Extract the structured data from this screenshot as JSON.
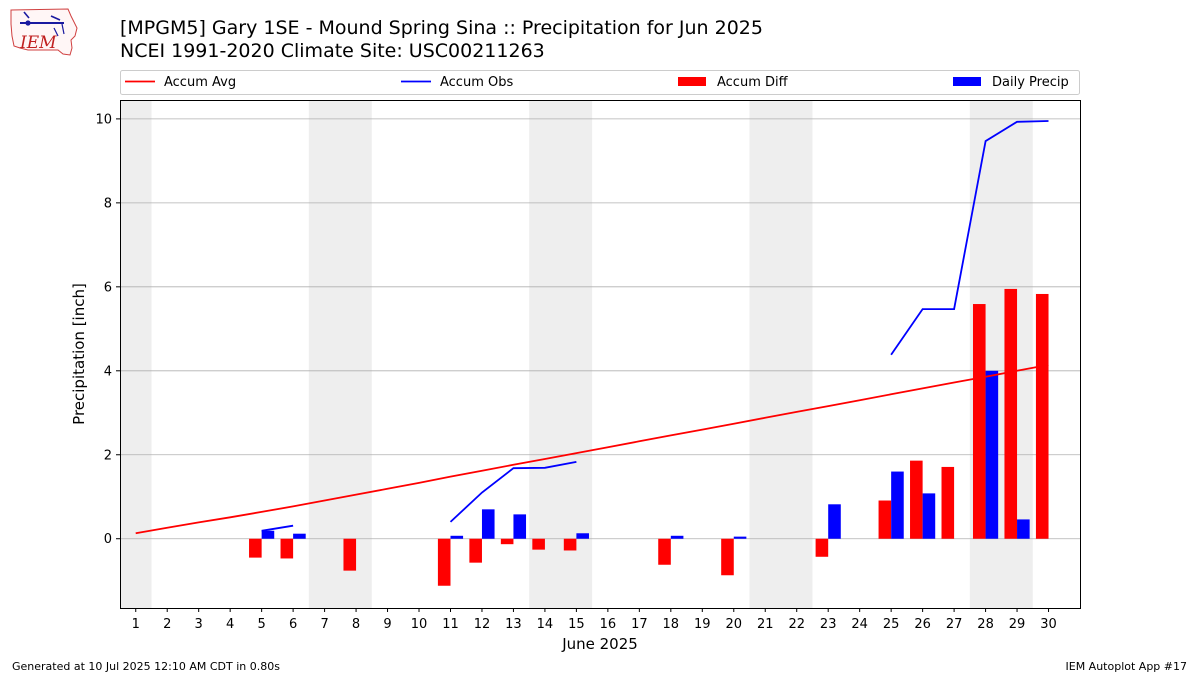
{
  "header": {
    "title_line1": "[MPGM5] Gary 1SE - Mound Spring Sina :: Precipitation for Jun 2025",
    "title_line2": "NCEI 1991-2020 Climate Site: USC00211263",
    "logo_text": "IEM"
  },
  "footer": {
    "left": "Generated at 10 Jul 2025 12:10 AM CDT in 0.80s",
    "right": "IEM Autoplot App #17"
  },
  "chart_data": {
    "type": "bar",
    "xlabel": "June 2025",
    "ylabel": "Precipitation [inch]",
    "xlim": [
      0.5,
      31.0
    ],
    "ylim": [
      -1.65,
      10.45
    ],
    "yticks": [
      0,
      2,
      4,
      6,
      8,
      10
    ],
    "x": [
      1,
      2,
      3,
      4,
      5,
      6,
      7,
      8,
      9,
      10,
      11,
      12,
      13,
      14,
      15,
      16,
      17,
      18,
      19,
      20,
      21,
      22,
      23,
      24,
      25,
      26,
      27,
      28,
      29,
      30
    ],
    "weekend_shading": [
      [
        0.5,
        1.5
      ],
      [
        6.5,
        8.5
      ],
      [
        13.5,
        15.5
      ],
      [
        20.5,
        22.5
      ],
      [
        27.5,
        29.5
      ]
    ],
    "grid": "horizontal",
    "legend": {
      "placement": "top",
      "entries": [
        {
          "label": "Accum Avg",
          "kind": "line",
          "color": "#ff0000"
        },
        {
          "label": "Accum Obs",
          "kind": "line",
          "color": "#0000ff"
        },
        {
          "label": "Accum Diff",
          "kind": "bar",
          "color": "#ff0000"
        },
        {
          "label": "Daily Precip",
          "kind": "bar",
          "color": "#0000ff"
        }
      ]
    },
    "series": [
      {
        "name": "Accum Avg",
        "kind": "line",
        "color": "#ff0000",
        "values": [
          0.13,
          0.26,
          0.39,
          0.51,
          0.64,
          0.77,
          0.91,
          1.05,
          1.19,
          1.33,
          1.48,
          1.62,
          1.76,
          1.9,
          2.04,
          2.18,
          2.32,
          2.46,
          2.6,
          2.74,
          2.88,
          3.02,
          3.16,
          3.3,
          3.44,
          3.58,
          3.72,
          3.86,
          4.0,
          4.14
        ]
      },
      {
        "name": "Accum Obs",
        "kind": "line",
        "color": "#0000ff",
        "values": [
          null,
          null,
          null,
          null,
          0.19,
          0.31,
          null,
          null,
          null,
          null,
          0.4,
          1.1,
          1.68,
          1.69,
          1.83,
          null,
          null,
          null,
          null,
          null,
          null,
          null,
          null,
          null,
          4.38,
          5.47,
          5.47,
          9.47,
          9.93,
          9.95
        ]
      },
      {
        "name": "Accum Diff",
        "kind": "bar",
        "color": "#ff0000",
        "values": [
          null,
          null,
          null,
          null,
          -0.45,
          -0.47,
          null,
          -0.76,
          null,
          null,
          -1.12,
          -0.57,
          -0.13,
          -0.26,
          -0.28,
          null,
          null,
          -0.62,
          null,
          -0.87,
          null,
          null,
          -0.43,
          null,
          0.91,
          1.86,
          1.71,
          5.59,
          5.95,
          5.83
        ]
      },
      {
        "name": "Daily Precip",
        "kind": "bar",
        "color": "#0000ff",
        "values": [
          null,
          null,
          null,
          null,
          0.19,
          0.12,
          null,
          null,
          null,
          null,
          0.07,
          0.7,
          0.58,
          null,
          0.13,
          null,
          null,
          0.07,
          null,
          0.05,
          null,
          null,
          0.82,
          null,
          1.6,
          1.08,
          null,
          4.0,
          0.46,
          null
        ]
      }
    ]
  }
}
